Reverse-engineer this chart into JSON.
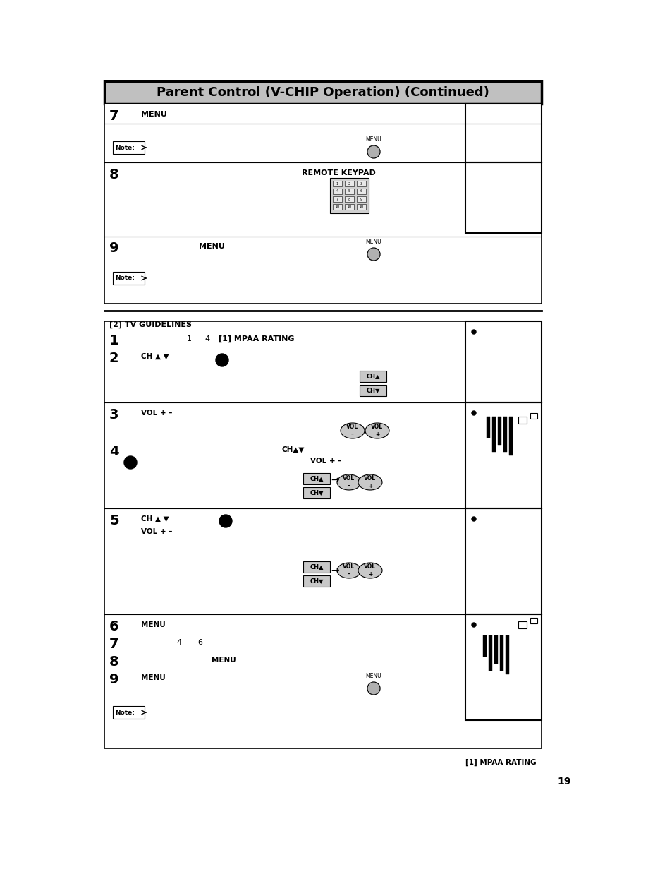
{
  "title": "Parent Control (V-CHIP Operation) (Continued)",
  "bg_color": "#ffffff",
  "title_bg": "#c8c8c8",
  "border_color": "#000000",
  "page_number": "19",
  "footnote": "[1] MPAA RATING"
}
